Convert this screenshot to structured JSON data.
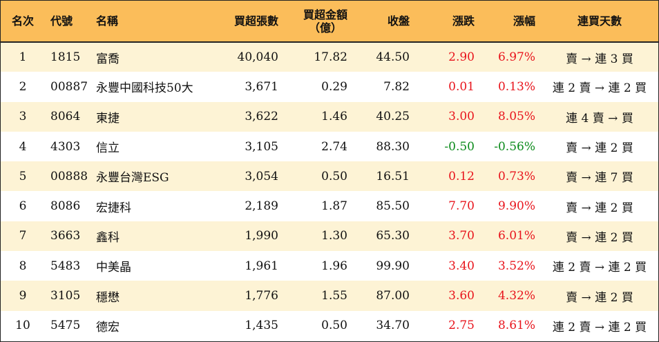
{
  "headers": {
    "rank": "名次",
    "code": "代號",
    "name": "名稱",
    "buy_lots": "買超張數",
    "buy_amount_line1": "買超金額",
    "buy_amount_line2": "（億）",
    "close": "收盤",
    "change": "漲跌",
    "change_pct": "漲幅",
    "streak": "連買天數"
  },
  "colors": {
    "header_bg": "#fbbd5a",
    "row_alt_bg": "#fdf3d5",
    "up": "#e8141c",
    "down": "#0a8a1a"
  },
  "rows": [
    {
      "rank": "1",
      "code": "1815",
      "name": "富喬",
      "buy_lots": "40,040",
      "buy_amount": "17.82",
      "close": "44.50",
      "change": "2.90",
      "change_pct": "6.97%",
      "streak": "賣 → 連 3 買",
      "dir": "up"
    },
    {
      "rank": "2",
      "code": "00887",
      "name": "永豐中國科技50大",
      "buy_lots": "3,671",
      "buy_amount": "0.29",
      "close": "7.82",
      "change": "0.01",
      "change_pct": "0.13%",
      "streak": "連 2 賣 → 連 2 買",
      "dir": "up"
    },
    {
      "rank": "3",
      "code": "8064",
      "name": "東捷",
      "buy_lots": "3,622",
      "buy_amount": "1.46",
      "close": "40.25",
      "change": "3.00",
      "change_pct": "8.05%",
      "streak": "連 4 賣 → 買",
      "dir": "up"
    },
    {
      "rank": "4",
      "code": "4303",
      "name": "信立",
      "buy_lots": "3,105",
      "buy_amount": "2.74",
      "close": "88.30",
      "change": "-0.50",
      "change_pct": "-0.56%",
      "streak": "賣 → 連 2 買",
      "dir": "down"
    },
    {
      "rank": "5",
      "code": "00888",
      "name": "永豐台灣ESG",
      "buy_lots": "3,054",
      "buy_amount": "0.50",
      "close": "16.51",
      "change": "0.12",
      "change_pct": "0.73%",
      "streak": "賣 → 連 7 買",
      "dir": "up"
    },
    {
      "rank": "6",
      "code": "8086",
      "name": "宏捷科",
      "buy_lots": "2,189",
      "buy_amount": "1.87",
      "close": "85.50",
      "change": "7.70",
      "change_pct": "9.90%",
      "streak": "賣 → 連 2 買",
      "dir": "up"
    },
    {
      "rank": "7",
      "code": "3663",
      "name": "鑫科",
      "buy_lots": "1,990",
      "buy_amount": "1.30",
      "close": "65.30",
      "change": "3.70",
      "change_pct": "6.01%",
      "streak": "賣 → 連 2 買",
      "dir": "up"
    },
    {
      "rank": "8",
      "code": "5483",
      "name": "中美晶",
      "buy_lots": "1,961",
      "buy_amount": "1.96",
      "close": "99.90",
      "change": "3.40",
      "change_pct": "3.52%",
      "streak": "連 2 賣 → 連 2 買",
      "dir": "up"
    },
    {
      "rank": "9",
      "code": "3105",
      "name": "穩懋",
      "buy_lots": "1,776",
      "buy_amount": "1.55",
      "close": "87.00",
      "change": "3.60",
      "change_pct": "4.32%",
      "streak": "賣 → 連 2 買",
      "dir": "up"
    },
    {
      "rank": "10",
      "code": "5475",
      "name": "德宏",
      "buy_lots": "1,435",
      "buy_amount": "0.50",
      "close": "34.70",
      "change": "2.75",
      "change_pct": "8.61%",
      "streak": "連 2 賣 → 連 2 買",
      "dir": "up"
    }
  ]
}
